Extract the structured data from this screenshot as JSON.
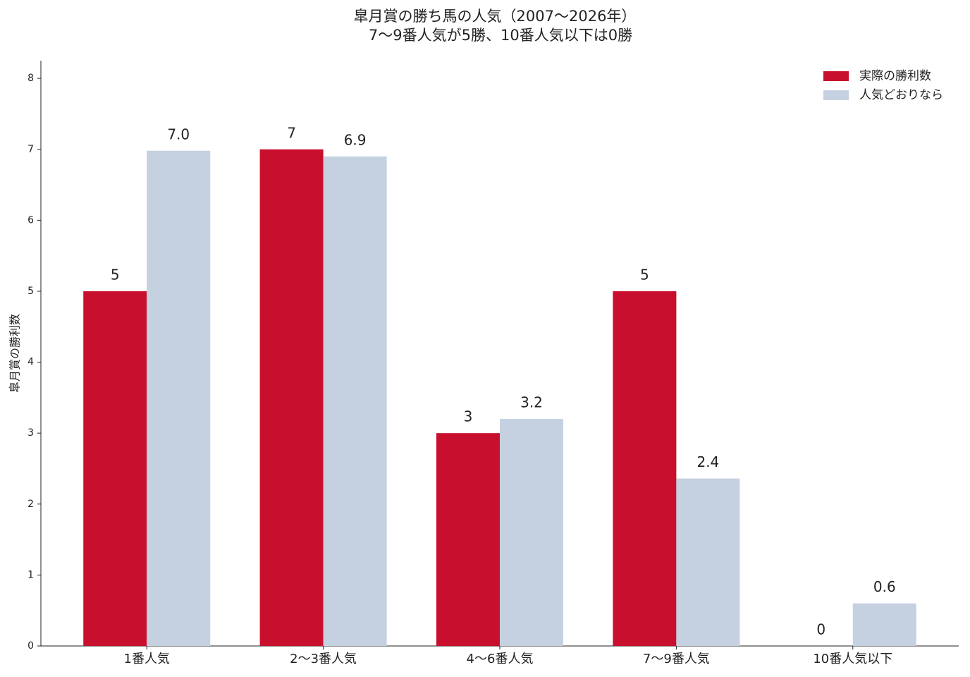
{
  "chart_data": {
    "type": "bar",
    "title": "皐月賞の勝ち馬の人気（2007〜2026年）",
    "subtitle": "7〜9番人気が5勝、10番人気以下は0勝",
    "y_label": "皐月賞の勝利数",
    "categories": [
      "1番人気",
      "2〜3番人気",
      "4〜6番人気",
      "7〜9番人気",
      "10番人気以下"
    ],
    "series": [
      {
        "name": "実際の勝利数",
        "color": "#c8102e",
        "label_color": "#c8102e",
        "values": [
          5,
          7,
          3,
          5,
          0
        ]
      },
      {
        "name": "人気どおりなら",
        "color": "#c5d1e0",
        "label_color": "#5f6773",
        "values": [
          6.98,
          6.9,
          3.2,
          2.36,
          0.6
        ],
        "value_labels": [
          "7.0",
          "6.9",
          "3.2",
          "2.4",
          "0.6"
        ]
      }
    ],
    "ylim": [
      0,
      8.25
    ],
    "yticks": [
      0,
      1,
      2,
      3,
      4,
      5,
      6,
      7,
      8
    ],
    "grid": false,
    "legend": "upper right"
  }
}
